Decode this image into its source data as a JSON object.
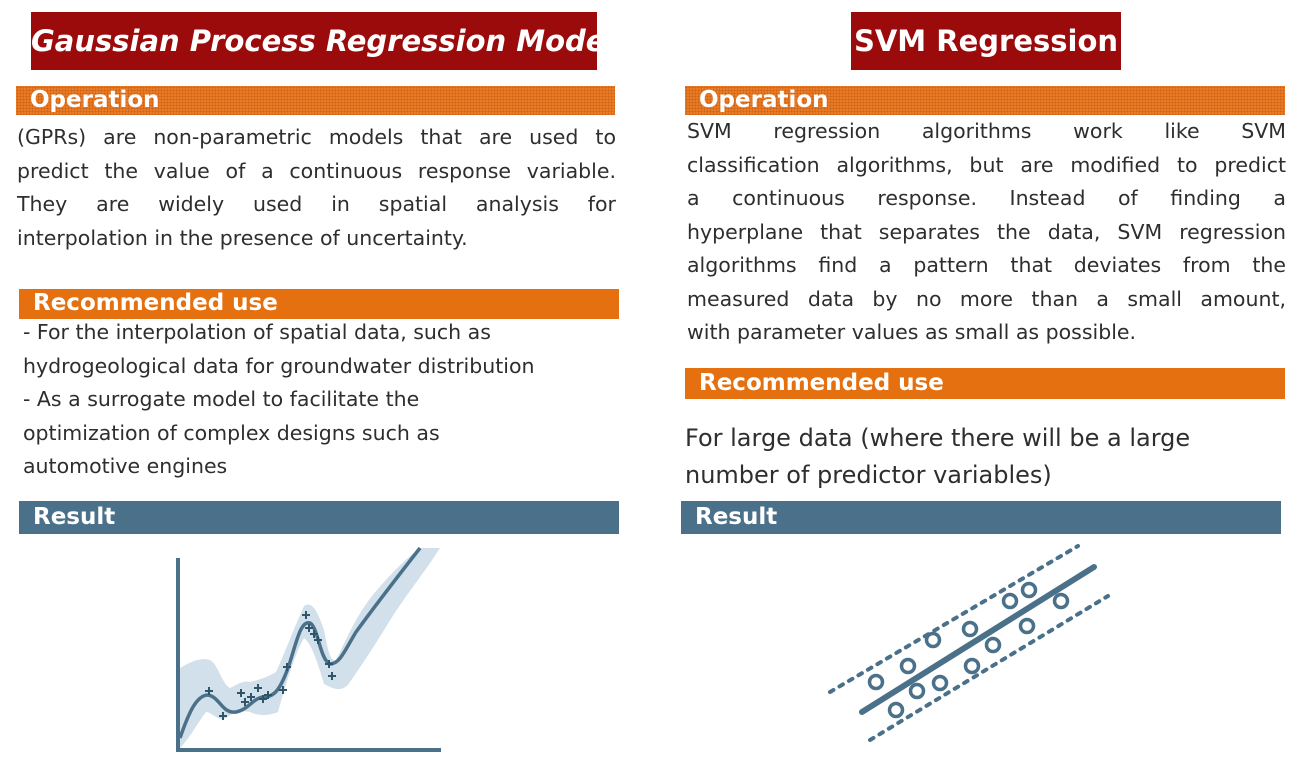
{
  "left": {
    "title": "Gaussian Process Regression Model",
    "operation": {
      "heading": "Operation",
      "lines": [
        "(GPRs) are non-parametric models that are used to",
        "predict the value of a continuous response variable.",
        "They are widely used in spatial analysis for",
        "interpolation in the presence of uncertainty."
      ]
    },
    "recommended": {
      "heading": "Recommended use",
      "lines": [
        "- For the interpolation of spatial data, such as",
        "hydrogeological data for groundwater distribution",
        "- As a surrogate model to facilitate the",
        "optimization of complex designs such as",
        "automotive engines"
      ]
    },
    "result": {
      "heading": "Result"
    }
  },
  "right": {
    "title": "SVM Regression",
    "operation": {
      "heading": "Operation",
      "lines": [
        "SVM regression algorithms work like SVM",
        "classification algorithms, but are modified to predict",
        "a continuous response. Instead of finding a",
        "hyperplane that separates the data, SVM regression",
        "algorithms find a pattern that deviates from the",
        "measured data by no more than a small amount,",
        "with parameter values as small as possible."
      ]
    },
    "recommended": {
      "heading": "Recommended use",
      "lines": [
        "For large data (where there will be a large",
        "number of predictor variables)"
      ]
    },
    "result": {
      "heading": "Result"
    }
  },
  "colors": {
    "title_bg": "#9c0b0b",
    "operation_bar": "#ea7a24",
    "recommended_bar": "#e5700f",
    "result_bar": "#4a7189",
    "plot_line": "#4a7189",
    "band": "#c9dbe8"
  }
}
